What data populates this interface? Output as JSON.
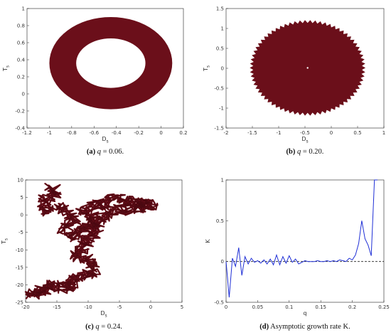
{
  "colors": {
    "mark": "#6b0f1a",
    "line": "#1f2fd6",
    "dashed": "#222222"
  },
  "chart_data": [
    {
      "id": "a",
      "type": "scatter",
      "caption_label": "(a)",
      "caption_text": "q = 0.06.",
      "xlabel": "D",
      "xlabel_sub": "s",
      "ylabel": "T",
      "ylabel_sub": "s",
      "xlim": [
        -1.2,
        0.2
      ],
      "ylim": [
        -0.4,
        1.0
      ],
      "xticks": [
        -1.2,
        -1,
        -0.8,
        -0.6,
        -0.4,
        -0.2,
        0,
        0.2
      ],
      "xticklabels": [
        "-1.2",
        "-1",
        "-0.8",
        "-0.6",
        "-0.4",
        "-0.2",
        "0",
        "0.2"
      ],
      "yticks": [
        -0.4,
        -0.2,
        0,
        0.2,
        0.4,
        0.6,
        0.8,
        1.0
      ],
      "yticklabels": [
        "-0.4",
        "-0.2",
        "0",
        "0.2",
        "0.4",
        "0.6",
        "0.8",
        "1"
      ],
      "shape": {
        "kind": "annulus",
        "center": [
          -0.45,
          0.36
        ],
        "outer_radius": [
          0.55,
          0.54
        ],
        "inner_radius": [
          0.31,
          0.29
        ]
      }
    },
    {
      "id": "b",
      "type": "scatter",
      "caption_label": "(b)",
      "caption_text": "q = 0.20.",
      "xlabel": "D",
      "xlabel_sub": "s",
      "ylabel": "T",
      "ylabel_sub": "s",
      "xlim": [
        -2,
        1
      ],
      "ylim": [
        -1.5,
        1.5
      ],
      "xticks": [
        -2,
        -1.5,
        -1,
        -0.5,
        0,
        0.5,
        1
      ],
      "xticklabels": [
        "-2",
        "-1.5",
        "-1",
        "-0.5",
        "0",
        "0.5",
        "1"
      ],
      "yticks": [
        -1.5,
        -1,
        -0.5,
        0,
        0.5,
        1,
        1.5
      ],
      "yticklabels": [
        "-1.5",
        "-1",
        "-0.5",
        "0",
        "0.5",
        "1",
        "1.5"
      ],
      "shape": {
        "kind": "disk",
        "center": [
          -0.45,
          0.01
        ],
        "radius": [
          1.1,
          1.2
        ]
      }
    },
    {
      "id": "c",
      "type": "line",
      "caption_label": "(c)",
      "caption_text": "q = 0.24.",
      "xlabel": "D",
      "xlabel_sub": "s",
      "ylabel": "T",
      "ylabel_sub": "s",
      "xlim": [
        -20,
        5
      ],
      "ylim": [
        -25,
        10
      ],
      "xticks": [
        -20,
        -15,
        -10,
        -5,
        0,
        5
      ],
      "xticklabels": [
        "-20",
        "-15",
        "-10",
        "-5",
        "0",
        "5"
      ],
      "yticks": [
        -25,
        -20,
        -15,
        -10,
        -5,
        0,
        5,
        10
      ],
      "yticklabels": [
        "-25",
        "-20",
        "-15",
        "-10",
        "-5",
        "0",
        "5",
        "10"
      ],
      "path": [
        [
          -16,
          8
        ],
        [
          -15,
          6
        ],
        [
          -17,
          4
        ],
        [
          -16.5,
          1
        ],
        [
          -14,
          2
        ],
        [
          -12,
          -1
        ],
        [
          -14,
          -4
        ],
        [
          -12,
          -6
        ],
        [
          -11,
          -4
        ],
        [
          -9,
          -3
        ],
        [
          -9,
          -1
        ],
        [
          -11,
          1
        ],
        [
          -9,
          3
        ],
        [
          -7,
          3
        ],
        [
          -6,
          5
        ],
        [
          -4,
          4
        ],
        [
          -2,
          3.5
        ],
        [
          -1,
          3
        ],
        [
          0,
          3
        ],
        [
          -2,
          2
        ],
        [
          -4,
          1.5
        ],
        [
          -6,
          1.5
        ],
        [
          -8,
          -1
        ],
        [
          -8.5,
          -4
        ],
        [
          -10,
          -7
        ],
        [
          -11,
          -9
        ],
        [
          -12,
          -12
        ],
        [
          -10,
          -13
        ],
        [
          -9,
          -15
        ],
        [
          -10,
          -17
        ],
        [
          -12,
          -18
        ],
        [
          -13,
          -20
        ],
        [
          -14,
          -21
        ],
        [
          -16,
          -20
        ],
        [
          -17,
          -21.5
        ],
        [
          -18,
          -22
        ],
        [
          -19,
          -23
        ]
      ]
    },
    {
      "id": "d",
      "type": "line",
      "caption_label": "(d)",
      "caption_text": "Asymptotic growth rate K.",
      "xlabel": "q",
      "ylabel": "K",
      "xlim": [
        0,
        0.25
      ],
      "ylim": [
        -0.5,
        1.0
      ],
      "xticks": [
        0,
        0.05,
        0.1,
        0.15,
        0.2,
        0.25
      ],
      "xticklabels": [
        "0",
        "0.05",
        "0.1",
        "0.15",
        "0.2",
        "0.25"
      ],
      "yticks": [
        -0.5,
        0,
        0.5,
        1.0
      ],
      "yticklabels": [
        "-0.5",
        "0",
        "0.5",
        "1"
      ],
      "reference_line_y": 0,
      "x": [
        0,
        0.005,
        0.01,
        0.015,
        0.02,
        0.025,
        0.03,
        0.035,
        0.04,
        0.045,
        0.05,
        0.055,
        0.06,
        0.065,
        0.07,
        0.075,
        0.08,
        0.085,
        0.09,
        0.095,
        0.1,
        0.105,
        0.11,
        0.115,
        0.12,
        0.125,
        0.13,
        0.135,
        0.14,
        0.145,
        0.15,
        0.155,
        0.16,
        0.165,
        0.17,
        0.175,
        0.18,
        0.185,
        0.19,
        0.195,
        0.2,
        0.205,
        0.21,
        0.215,
        0.22,
        0.225,
        0.23,
        0.235,
        0.24
      ],
      "y": [
        0.0,
        -0.44,
        0.04,
        -0.06,
        0.17,
        -0.17,
        0.06,
        -0.03,
        0.04,
        -0.01,
        0.01,
        -0.02,
        0.02,
        -0.03,
        0.03,
        -0.04,
        0.08,
        -0.04,
        0.06,
        -0.02,
        0.07,
        -0.01,
        0.03,
        -0.03,
        -0.01,
        0.01,
        0.0,
        0.0,
        0.0,
        0.01,
        0.0,
        0.0,
        0.01,
        0.0,
        0.01,
        0.0,
        0.02,
        0.01,
        0.0,
        0.04,
        0.02,
        0.08,
        0.22,
        0.5,
        0.28,
        0.2,
        0.07,
        1.0,
        1.0
      ]
    }
  ]
}
